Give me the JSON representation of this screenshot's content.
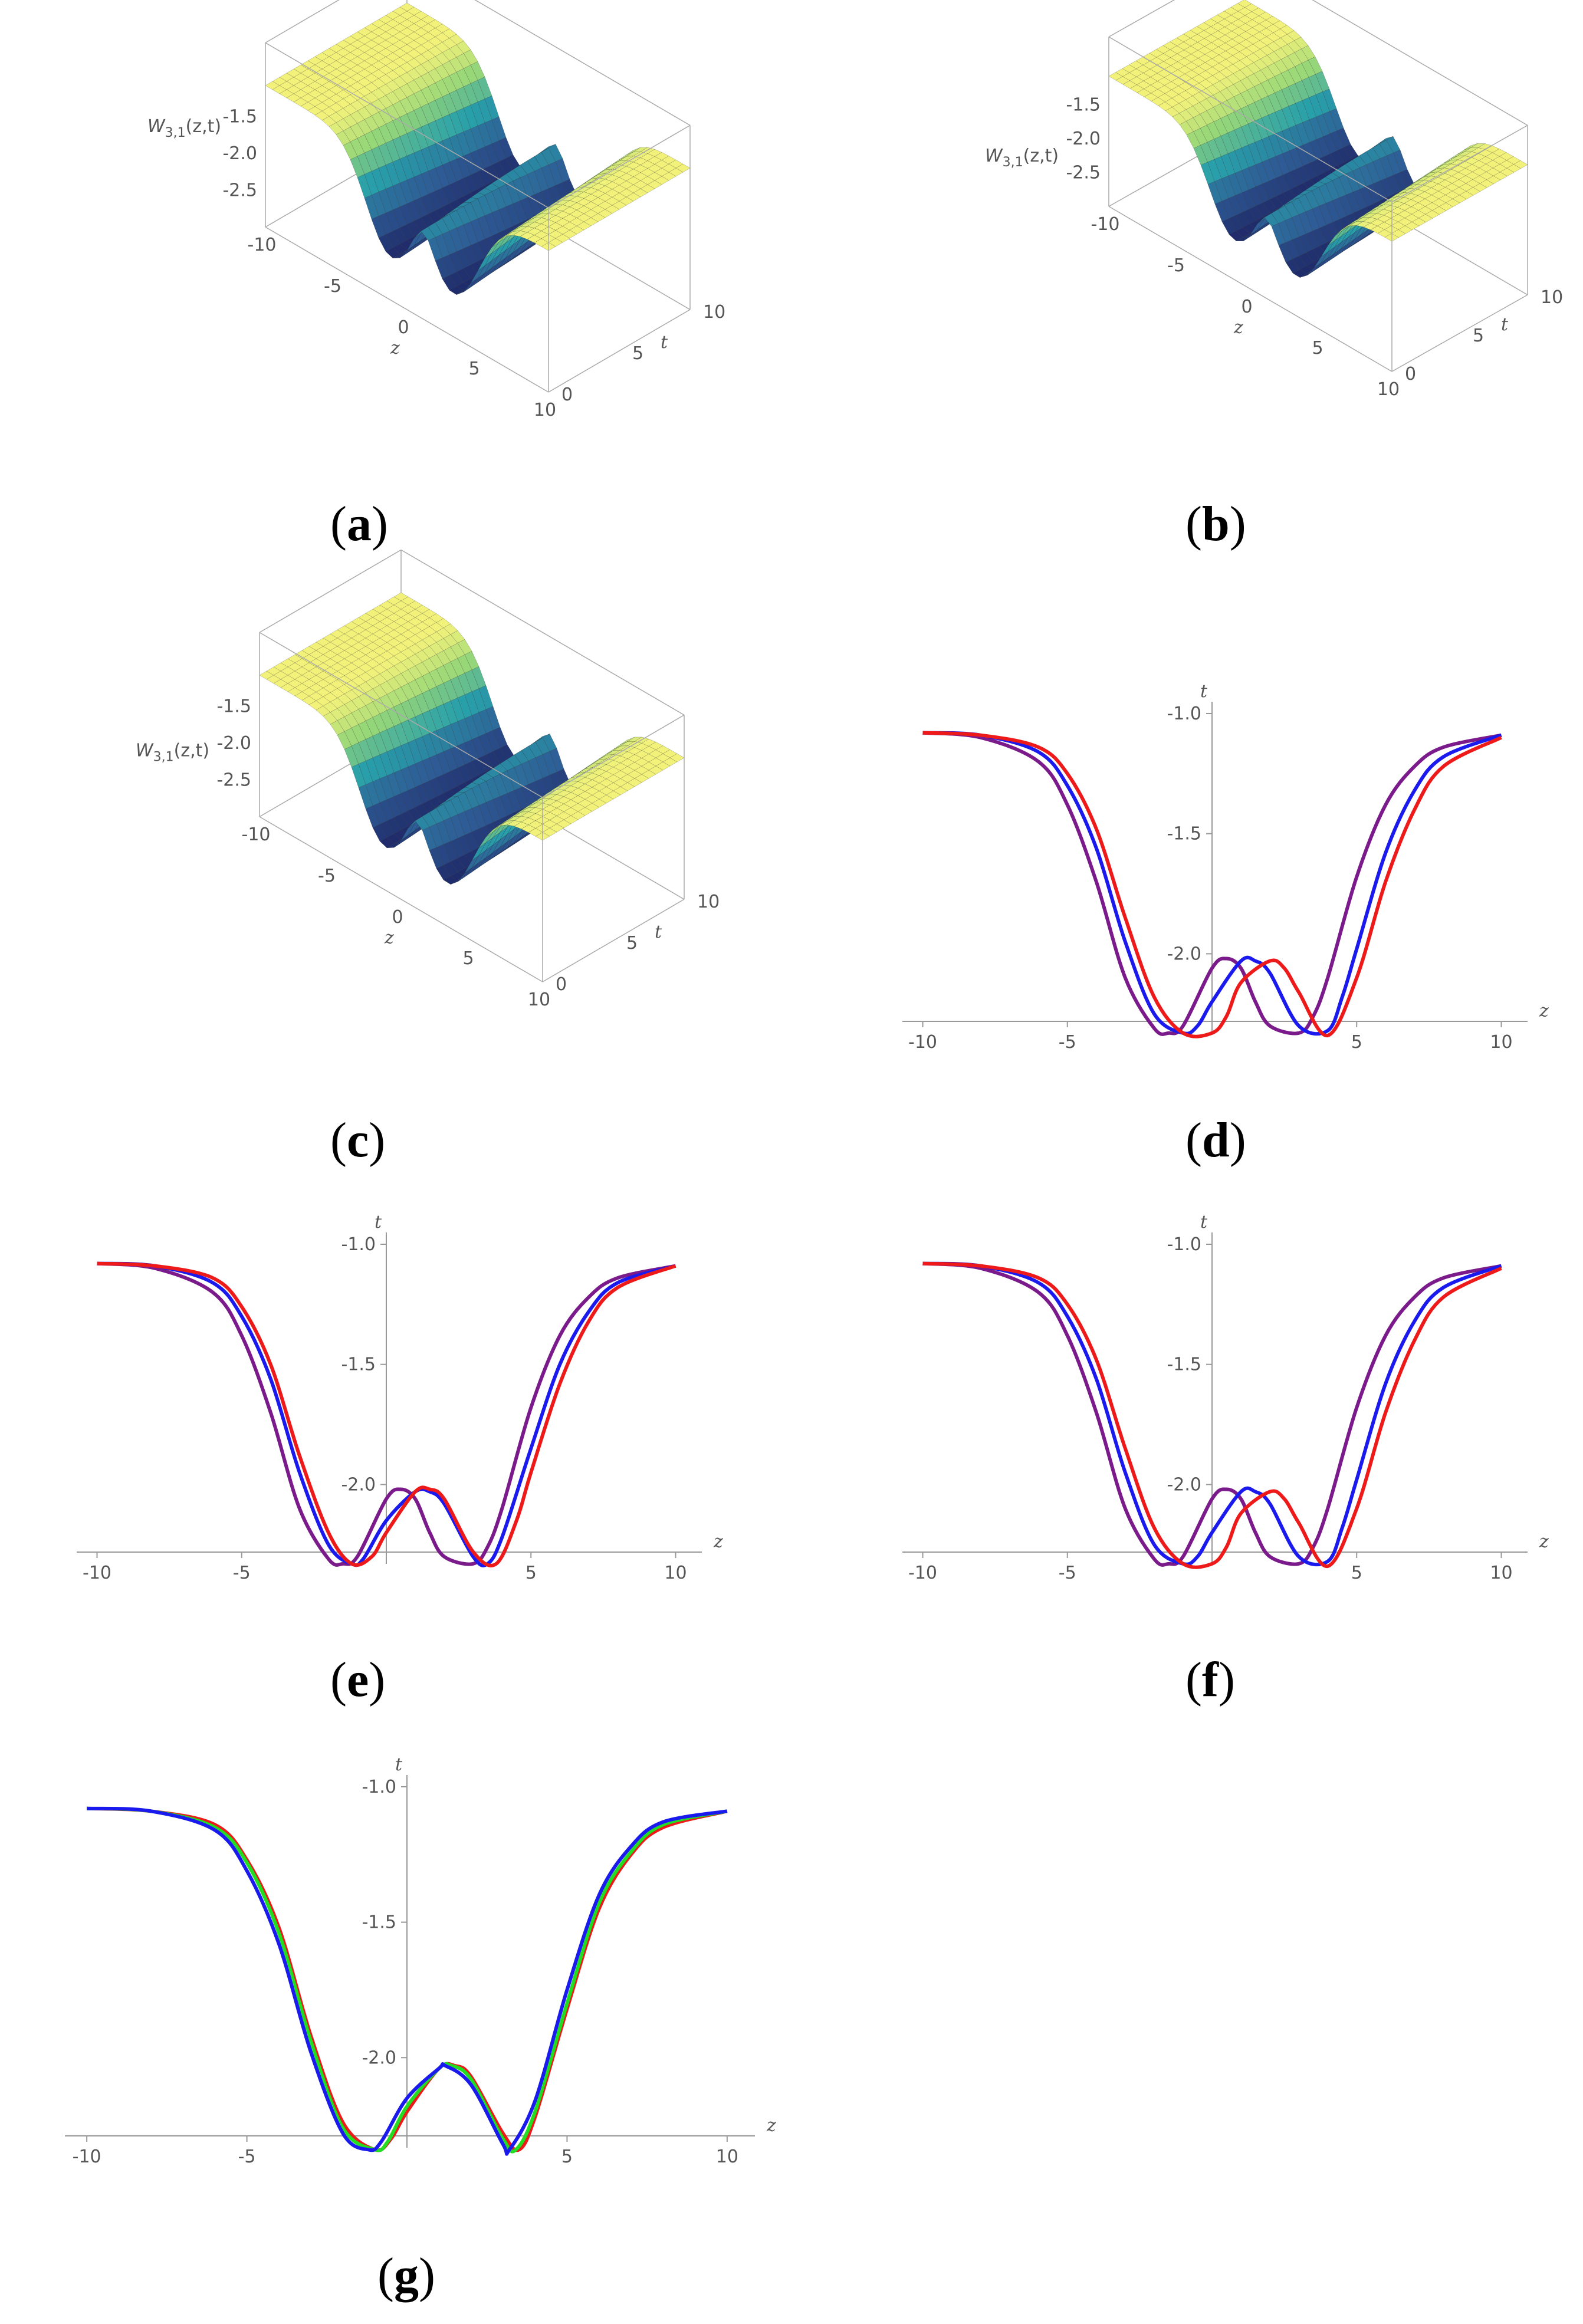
{
  "captions": {
    "a": "a",
    "b": "b",
    "c": "c",
    "d": "d",
    "e": "e",
    "f": "f",
    "g": "g"
  },
  "surface_panels": [
    {
      "id": "a",
      "zlabel": "W3,1(z,t)",
      "zlabel_main": "W",
      "zlabel_sub": "3,1",
      "zlabel_args": "(z,t)",
      "z_ticks": [
        "-1.5",
        "-2.0",
        "-2.5"
      ],
      "x_ticks": [
        "-10",
        "-5",
        "0",
        "5",
        "10"
      ],
      "t_ticks": [
        "0",
        "5",
        "10"
      ],
      "xlabel": "z",
      "tlabel": "t"
    },
    {
      "id": "b",
      "zlabel_main": "W",
      "zlabel_sub": "3,1",
      "zlabel_args": "(z,t)",
      "z_ticks": [
        "-1.5",
        "-2.0",
        "-2.5"
      ],
      "x_ticks": [
        "-10",
        "-5",
        "0",
        "5",
        "10"
      ],
      "t_ticks": [
        "0",
        "5",
        "10"
      ],
      "xlabel": "z",
      "tlabel": "t"
    },
    {
      "id": "c",
      "zlabel_main": "W",
      "zlabel_sub": "3,1",
      "zlabel_args": "(z,t)",
      "z_ticks": [
        "-1.5",
        "-2.0",
        "-2.5"
      ],
      "x_ticks": [
        "-10",
        "-5",
        "0",
        "5",
        "10"
      ],
      "t_ticks": [
        "0",
        "5",
        "10"
      ],
      "xlabel": "z",
      "tlabel": "t"
    }
  ],
  "colors": {
    "purple": "#7b1a8a",
    "blue": "#1a1aee",
    "red": "#ee1a1a",
    "green": "#22dd22",
    "axis": "#999999",
    "surface_high": "#f2f27a",
    "surface_low": "#1b1d5e"
  },
  "chart_data": [
    {
      "id": "d",
      "type": "line",
      "xlabel": "z",
      "ylabel": "t",
      "xlim": [
        -10.5,
        10.5
      ],
      "ylim": [
        -2.35,
        -1.0
      ],
      "x_ticks": [
        "-10",
        "-5",
        "5",
        "10"
      ],
      "x_tick_values": [
        -10,
        -5,
        5,
        10
      ],
      "y_ticks": [
        "-1.0",
        "-1.5",
        "-2.0"
      ],
      "y_tick_values": [
        -1.0,
        -1.5,
        -2.0
      ],
      "series": [
        {
          "color": "purple",
          "x": [
            -10,
            -8,
            -6,
            -5,
            -4,
            -3,
            -2,
            -1.5,
            -1,
            0,
            0.5,
            1,
            1.5,
            2,
            3,
            3.5,
            4,
            5,
            6,
            7,
            8,
            10
          ],
          "y": [
            -1.08,
            -1.1,
            -1.2,
            -1.38,
            -1.7,
            -2.1,
            -2.31,
            -2.33,
            -2.3,
            -2.06,
            -2.02,
            -2.06,
            -2.2,
            -2.3,
            -2.33,
            -2.26,
            -2.1,
            -1.68,
            -1.38,
            -1.22,
            -1.14,
            -1.09
          ]
        },
        {
          "color": "blue",
          "x": [
            -10,
            -8,
            -6,
            -5,
            -4,
            -3,
            -2,
            -1,
            -0.5,
            0,
            1,
            1.5,
            2,
            3,
            4,
            4.5,
            5,
            6,
            7,
            8,
            10
          ],
          "y": [
            -1.08,
            -1.09,
            -1.16,
            -1.3,
            -1.56,
            -1.95,
            -2.25,
            -2.33,
            -2.3,
            -2.2,
            -2.03,
            -2.03,
            -2.08,
            -2.3,
            -2.32,
            -2.18,
            -1.98,
            -1.58,
            -1.32,
            -1.18,
            -1.09
          ]
        },
        {
          "color": "red",
          "x": [
            -10,
            -8,
            -6,
            -5,
            -4,
            -3,
            -2,
            -1,
            0,
            0.5,
            1,
            2,
            2.5,
            3,
            4,
            5,
            6,
            7,
            8,
            10
          ],
          "y": [
            -1.08,
            -1.09,
            -1.14,
            -1.25,
            -1.48,
            -1.85,
            -2.18,
            -2.33,
            -2.33,
            -2.26,
            -2.12,
            -2.03,
            -2.06,
            -2.16,
            -2.34,
            -2.1,
            -1.7,
            -1.4,
            -1.22,
            -1.1
          ]
        }
      ]
    },
    {
      "id": "e",
      "type": "line",
      "xlabel": "z",
      "ylabel": "t",
      "xlim": [
        -10.5,
        10.5
      ],
      "ylim": [
        -2.35,
        -1.0
      ],
      "x_ticks": [
        "-10",
        "-5",
        "5",
        "10"
      ],
      "x_tick_values": [
        -10,
        -5,
        5,
        10
      ],
      "y_ticks": [
        "-1.0",
        "-1.5",
        "-2.0"
      ],
      "y_tick_values": [
        -1.0,
        -1.5,
        -2.0
      ],
      "series": [
        {
          "color": "purple",
          "x": [
            -10,
            -8,
            -6,
            -5,
            -4,
            -3,
            -2,
            -1.5,
            -1,
            0,
            0.5,
            1,
            1.5,
            2,
            3,
            3.5,
            4,
            5,
            6,
            7,
            8,
            10
          ],
          "y": [
            -1.08,
            -1.1,
            -1.2,
            -1.38,
            -1.7,
            -2.1,
            -2.31,
            -2.33,
            -2.3,
            -2.06,
            -2.02,
            -2.06,
            -2.2,
            -2.3,
            -2.33,
            -2.26,
            -2.1,
            -1.68,
            -1.38,
            -1.22,
            -1.14,
            -1.09
          ]
        },
        {
          "color": "blue",
          "x": [
            -10,
            -8,
            -6,
            -5,
            -4,
            -3,
            -2,
            -1.2,
            -0.8,
            0,
            1,
            1.5,
            2,
            3,
            3.5,
            4,
            5,
            6,
            7,
            8,
            10
          ],
          "y": [
            -1.08,
            -1.09,
            -1.16,
            -1.3,
            -1.56,
            -1.95,
            -2.25,
            -2.33,
            -2.31,
            -2.15,
            -2.03,
            -2.03,
            -2.08,
            -2.3,
            -2.33,
            -2.22,
            -1.85,
            -1.5,
            -1.28,
            -1.16,
            -1.09
          ]
        },
        {
          "color": "red",
          "x": [
            -10,
            -8,
            -6,
            -5,
            -4,
            -3,
            -2,
            -1.2,
            -0.5,
            0,
            1,
            1.5,
            2,
            3,
            3.8,
            4.5,
            5,
            6,
            7,
            8,
            10
          ],
          "y": [
            -1.08,
            -1.09,
            -1.14,
            -1.26,
            -1.5,
            -1.88,
            -2.2,
            -2.33,
            -2.3,
            -2.2,
            -2.03,
            -2.02,
            -2.06,
            -2.28,
            -2.33,
            -2.15,
            -1.95,
            -1.58,
            -1.32,
            -1.18,
            -1.09
          ]
        }
      ]
    },
    {
      "id": "f",
      "type": "line",
      "xlabel": "z",
      "ylabel": "t",
      "xlim": [
        -10.5,
        10.5
      ],
      "ylim": [
        -2.35,
        -1.0
      ],
      "x_ticks": [
        "-10",
        "-5",
        "5",
        "10"
      ],
      "x_tick_values": [
        -10,
        -5,
        5,
        10
      ],
      "y_ticks": [
        "-1.0",
        "-1.5",
        "-2.0"
      ],
      "y_tick_values": [
        -1.0,
        -1.5,
        -2.0
      ],
      "series": [
        {
          "color": "purple",
          "x": [
            -10,
            -8,
            -6,
            -5,
            -4,
            -3,
            -2,
            -1.5,
            -1,
            0,
            0.5,
            1,
            1.5,
            2,
            3,
            3.5,
            4,
            5,
            6,
            7,
            8,
            10
          ],
          "y": [
            -1.08,
            -1.1,
            -1.2,
            -1.38,
            -1.7,
            -2.1,
            -2.31,
            -2.33,
            -2.3,
            -2.06,
            -2.02,
            -2.06,
            -2.2,
            -2.3,
            -2.33,
            -2.26,
            -2.1,
            -1.68,
            -1.38,
            -1.22,
            -1.14,
            -1.09
          ]
        },
        {
          "color": "blue",
          "x": [
            -10,
            -8,
            -6,
            -5,
            -4,
            -3,
            -2,
            -1,
            -0.5,
            0,
            1,
            1.5,
            2,
            3,
            4,
            4.5,
            5,
            6,
            7,
            8,
            10
          ],
          "y": [
            -1.08,
            -1.09,
            -1.16,
            -1.3,
            -1.56,
            -1.95,
            -2.25,
            -2.33,
            -2.3,
            -2.2,
            -2.03,
            -2.03,
            -2.08,
            -2.3,
            -2.32,
            -2.18,
            -1.98,
            -1.58,
            -1.32,
            -1.18,
            -1.09
          ]
        },
        {
          "color": "red",
          "x": [
            -10,
            -8,
            -6,
            -5,
            -4,
            -3,
            -2,
            -1,
            0,
            0.5,
            1,
            2,
            2.5,
            3,
            4,
            5,
            6,
            7,
            8,
            10
          ],
          "y": [
            -1.08,
            -1.09,
            -1.14,
            -1.25,
            -1.48,
            -1.85,
            -2.18,
            -2.33,
            -2.33,
            -2.26,
            -2.12,
            -2.03,
            -2.06,
            -2.16,
            -2.34,
            -2.1,
            -1.7,
            -1.4,
            -1.22,
            -1.1
          ]
        }
      ]
    },
    {
      "id": "g",
      "type": "line",
      "xlabel": "z",
      "ylabel": "t",
      "xlim": [
        -10.5,
        10.5
      ],
      "ylim": [
        -2.35,
        -1.0
      ],
      "x_ticks": [
        "-10",
        "-5",
        "5",
        "10"
      ],
      "x_tick_values": [
        -10,
        -5,
        5,
        10
      ],
      "y_ticks": [
        "-1.0",
        "-1.5",
        "-2.0"
      ],
      "y_tick_values": [
        -1.0,
        -1.5,
        -2.0
      ],
      "series": [
        {
          "color": "red",
          "x": [
            -10,
            -8,
            -6,
            -5,
            -4,
            -3,
            -2,
            -1,
            -0.5,
            0,
            1,
            1.5,
            2,
            3,
            3.5,
            4,
            5,
            6,
            7,
            8,
            10
          ],
          "y": [
            -1.08,
            -1.09,
            -1.14,
            -1.27,
            -1.52,
            -1.92,
            -2.24,
            -2.34,
            -2.3,
            -2.2,
            -2.04,
            -2.03,
            -2.07,
            -2.28,
            -2.34,
            -2.22,
            -1.82,
            -1.45,
            -1.25,
            -1.15,
            -1.09
          ]
        },
        {
          "color": "green",
          "x": [
            -10,
            -8,
            -6,
            -5,
            -4,
            -3,
            -2,
            -1,
            -0.6,
            0,
            1,
            1.4,
            2,
            3,
            3.4,
            4,
            5,
            6,
            7,
            8,
            10
          ],
          "y": [
            -1.08,
            -1.09,
            -1.15,
            -1.28,
            -1.54,
            -1.94,
            -2.26,
            -2.34,
            -2.31,
            -2.18,
            -2.04,
            -2.03,
            -2.08,
            -2.3,
            -2.34,
            -2.2,
            -1.8,
            -1.43,
            -1.24,
            -1.14,
            -1.09
          ]
        },
        {
          "color": "blue",
          "x": [
            -10,
            -8,
            -6,
            -5,
            -4,
            -3,
            -2,
            -1.2,
            -0.8,
            0,
            1,
            1.2,
            2,
            3,
            3.2,
            4,
            5,
            6,
            7,
            8,
            10
          ],
          "y": [
            -1.08,
            -1.09,
            -1.16,
            -1.31,
            -1.58,
            -1.98,
            -2.28,
            -2.34,
            -2.31,
            -2.15,
            -2.04,
            -2.03,
            -2.1,
            -2.32,
            -2.34,
            -2.16,
            -1.75,
            -1.4,
            -1.22,
            -1.13,
            -1.09
          ]
        }
      ]
    }
  ]
}
